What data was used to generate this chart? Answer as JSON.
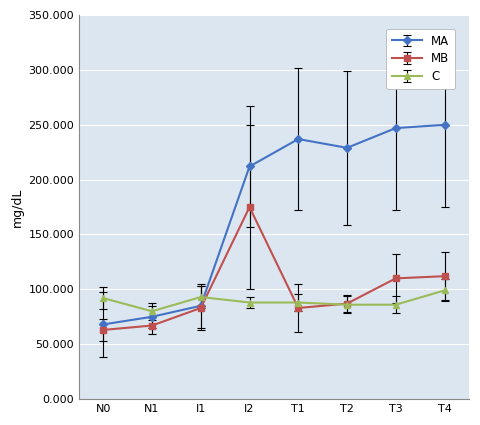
{
  "x_labels": [
    "N0",
    "N1",
    "I1",
    "I2",
    "T1",
    "T2",
    "T3",
    "T4"
  ],
  "MA_values": [
    68,
    75,
    85,
    212,
    237,
    229,
    247,
    250
  ],
  "MB_values": [
    63,
    67,
    83,
    175,
    83,
    87,
    110,
    112
  ],
  "C_values": [
    92,
    80,
    93,
    88,
    88,
    86,
    86,
    99
  ],
  "MA_errors": [
    30,
    10,
    20,
    55,
    65,
    70,
    75,
    75
  ],
  "MB_errors": [
    10,
    8,
    20,
    75,
    22,
    8,
    22,
    22
  ],
  "C_errors": [
    10,
    8,
    10,
    5,
    8,
    8,
    8,
    10
  ],
  "MA_color": "#4472C4",
  "MB_color": "#C0504D",
  "C_color": "#9BBB59",
  "ylabel": "mg/dL",
  "ylim_min": 0,
  "ylim_max": 350,
  "ytick_positions": [
    0,
    50,
    100,
    150,
    200,
    250,
    300,
    350
  ],
  "ytick_labels": [
    "0.000",
    "50.000",
    "100.000",
    "150.000",
    "200.000",
    "250.000",
    "300.000",
    "350.000"
  ],
  "legend_labels": [
    "MA",
    "MB",
    "C"
  ],
  "plot_bg_color": "#DCE6F1",
  "fig_bg_color": "#FFFFFF",
  "grid_color": "#FFFFFF"
}
